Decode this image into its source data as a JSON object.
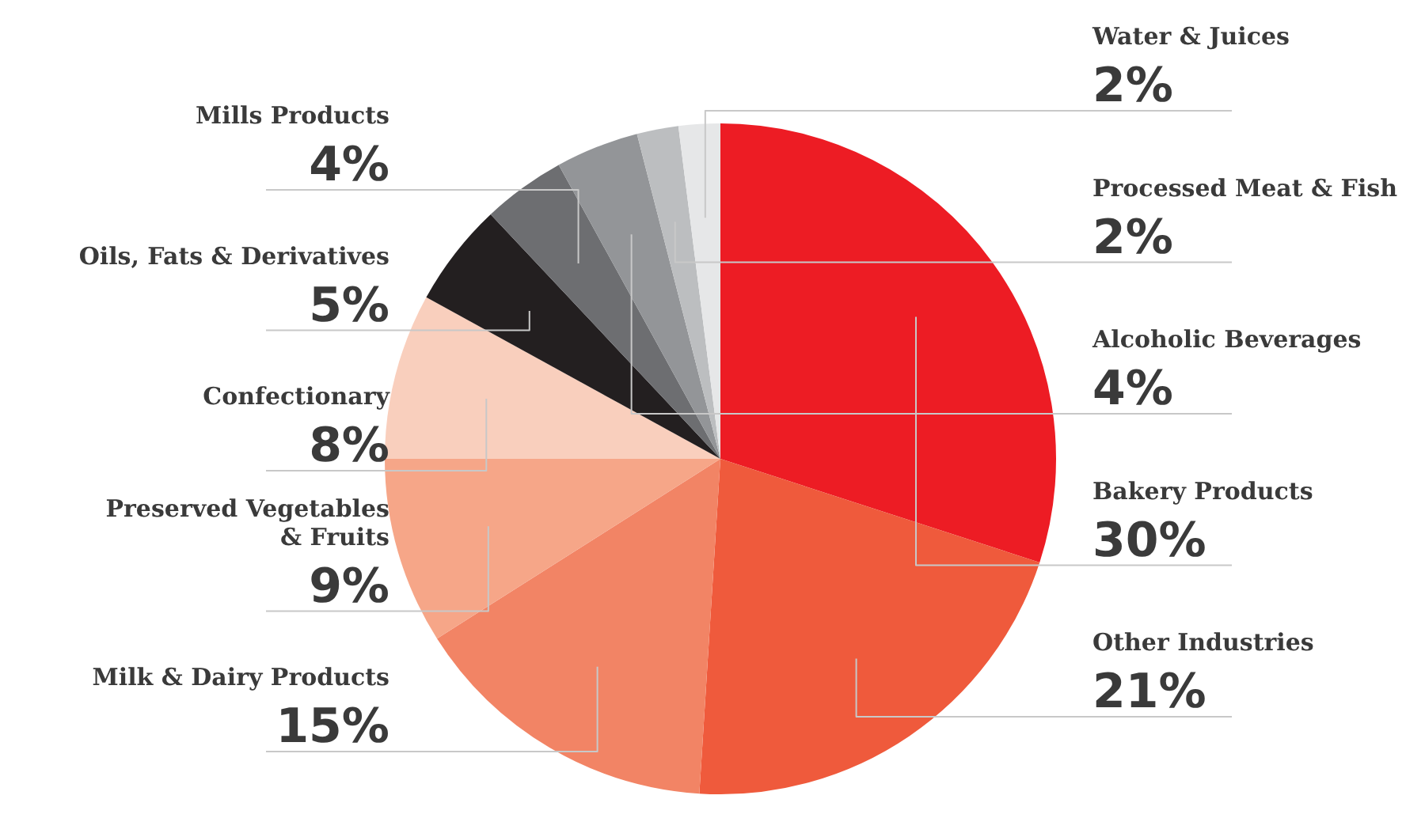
{
  "chart_data": {
    "type": "pie",
    "categories": [
      "Bakery Products",
      "Other Industries",
      "Milk & Dairy Products",
      "Preserved Vegetables\n& Fruits",
      "Confectionary",
      "Oils, Fats & Derivatives",
      "Mills Products",
      "Alcoholic Beverages",
      "Processed Meat & Fish",
      "Water & Juices"
    ],
    "values": [
      30,
      21,
      15,
      9,
      8,
      5,
      4,
      4,
      2,
      2
    ],
    "value_labels": [
      "30%",
      "21%",
      "15%",
      "9%",
      "8%",
      "5%",
      "4%",
      "4%",
      "2%",
      "2%"
    ],
    "colors": [
      "#ed1c24",
      "#ef5a3c",
      "#f28465",
      "#f6a688",
      "#f9cfbd",
      "#231f20",
      "#6d6e71",
      "#939598",
      "#bcbec0",
      "#e6e7e8"
    ]
  }
}
